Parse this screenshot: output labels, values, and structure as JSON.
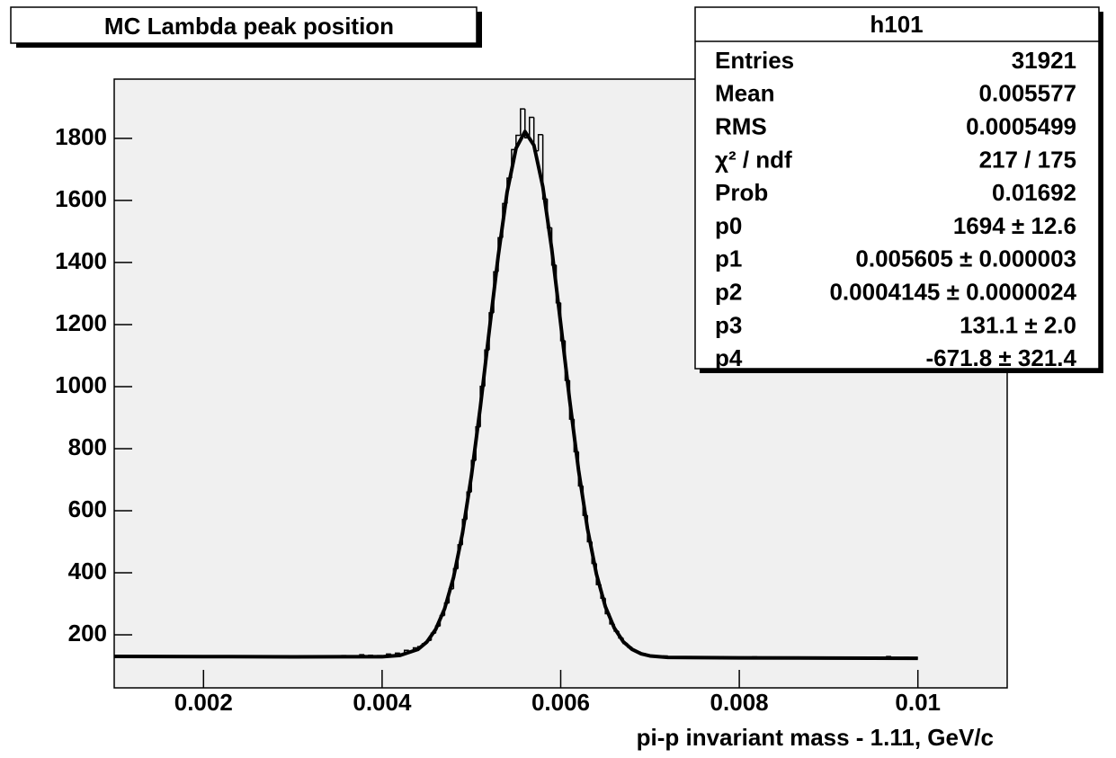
{
  "chart_data": {
    "type": "histogram",
    "title": "MC Lambda peak position",
    "x_label": "pi-p invariant mass - 1.11, GeV/c",
    "color": "#000000",
    "xlim": [
      0.001,
      0.011
    ],
    "ylim": [
      29,
      1991
    ],
    "xticks": [
      0.002,
      0.004,
      0.006,
      0.008,
      0.01
    ],
    "yticks": [
      200,
      400,
      600,
      800,
      1000,
      1200,
      1400,
      1600,
      1800
    ],
    "bins": [
      0.001,
      0.00105,
      0.0011,
      0.00115,
      0.0012,
      0.00125,
      0.0013,
      0.00135,
      0.0014,
      0.00145,
      0.0015,
      0.00155,
      0.0016,
      0.00165,
      0.0017,
      0.00175,
      0.0018,
      0.00185,
      0.0019,
      0.00195,
      0.002,
      0.00205,
      0.0021,
      0.00215,
      0.0022,
      0.00225,
      0.0023,
      0.00235,
      0.0024,
      0.00245,
      0.0025,
      0.00255,
      0.0026,
      0.00265,
      0.0027,
      0.00275,
      0.0028,
      0.00285,
      0.0029,
      0.00295,
      0.003,
      0.00305,
      0.0031,
      0.00315,
      0.0032,
      0.00325,
      0.0033,
      0.00335,
      0.0034,
      0.00345,
      0.0035,
      0.00355,
      0.0036,
      0.00365,
      0.0037,
      0.00375,
      0.0038,
      0.00385,
      0.0039,
      0.00395,
      0.004,
      0.00405,
      0.0041,
      0.00415,
      0.0042,
      0.00425,
      0.0043,
      0.00435,
      0.0044,
      0.00445,
      0.0045,
      0.00455,
      0.0046,
      0.00465,
      0.0047,
      0.00475,
      0.0048,
      0.00485,
      0.0049,
      0.00495,
      0.005,
      0.00505,
      0.0051,
      0.00515,
      0.0052,
      0.00525,
      0.0053,
      0.00535,
      0.0054,
      0.00545,
      0.0055,
      0.00555,
      0.0056,
      0.00565,
      0.0057,
      0.00575,
      0.0058,
      0.00585,
      0.0059,
      0.00595,
      0.006,
      0.00605,
      0.0061,
      0.00615,
      0.0062,
      0.00625,
      0.0063,
      0.00635,
      0.0064,
      0.00645,
      0.0065,
      0.00655,
      0.0066,
      0.00665,
      0.0067,
      0.00675,
      0.0068,
      0.00685,
      0.0069,
      0.00695,
      0.007,
      0.00705,
      0.0071,
      0.00715,
      0.0072,
      0.00725,
      0.0073,
      0.00735,
      0.0074,
      0.00745,
      0.0075,
      0.00755,
      0.0076,
      0.00765,
      0.0077,
      0.00775,
      0.0078,
      0.00785,
      0.0079,
      0.00795,
      0.008,
      0.00805,
      0.0081,
      0.00815,
      0.0082,
      0.00825,
      0.0083,
      0.00835,
      0.0084,
      0.00845,
      0.0085,
      0.00855,
      0.0086,
      0.00865,
      0.0087,
      0.00875,
      0.0088,
      0.00885,
      0.0089,
      0.00895,
      0.009,
      0.00905,
      0.0091,
      0.00915,
      0.0092,
      0.00925,
      0.0093,
      0.00935,
      0.0094,
      0.00945,
      0.0095,
      0.00955,
      0.0096,
      0.00965,
      0.0097,
      0.00975,
      0.0098,
      0.00985,
      0.0099,
      0.00995,
      0.01
    ],
    "counts": [
      131,
      129,
      132,
      130,
      131,
      128,
      130,
      132,
      129,
      131,
      130,
      131,
      129,
      130,
      132,
      130,
      128,
      131,
      130,
      129,
      131,
      130,
      129,
      132,
      130,
      129,
      131,
      130,
      128,
      130,
      131,
      129,
      130,
      130,
      128,
      131,
      129,
      130,
      132,
      129,
      130,
      128,
      131,
      129,
      130,
      131,
      129,
      130,
      128,
      131,
      130,
      133,
      129,
      131,
      130,
      136,
      131,
      134,
      132,
      133,
      130,
      138,
      134,
      141,
      137,
      150,
      146,
      158,
      162,
      171,
      182,
      205,
      228,
      262,
      302,
      348,
      413,
      490,
      572,
      660,
      762,
      870,
      1001,
      1118,
      1238,
      1370,
      1480,
      1590,
      1672,
      1764,
      1810,
      1895,
      1802,
      1868,
      1760,
      1812,
      1605,
      1512,
      1392,
      1270,
      1148,
      1020,
      895,
      790,
      680,
      585,
      500,
      430,
      362,
      318,
      268,
      235,
      212,
      190,
      172,
      160,
      150,
      144,
      140,
      134,
      133,
      131,
      130,
      132,
      129,
      128,
      127,
      129,
      126,
      128,
      127,
      126,
      128,
      127,
      129,
      126,
      128,
      127,
      125,
      128,
      127,
      126,
      128,
      129,
      126,
      127,
      125,
      128,
      126,
      127,
      128,
      126,
      125,
      127,
      126,
      128,
      126,
      125,
      127,
      126,
      128,
      125,
      126,
      127,
      125,
      126,
      128,
      125,
      126,
      127,
      125,
      126,
      128,
      130,
      125,
      126,
      125,
      127,
      126,
      125
    ],
    "fit": {
      "color": "#000000",
      "x": [
        0.001,
        0.002,
        0.003,
        0.004,
        0.0042,
        0.0044,
        0.0045,
        0.0046,
        0.0047,
        0.0048,
        0.0049,
        0.005,
        0.0051,
        0.0052,
        0.0053,
        0.0054,
        0.0055,
        0.0056,
        0.0057,
        0.0058,
        0.0059,
        0.006,
        0.0061,
        0.0062,
        0.0063,
        0.0064,
        0.0065,
        0.0066,
        0.0067,
        0.0068,
        0.0069,
        0.007,
        0.0072,
        0.008,
        0.009,
        0.01
      ],
      "values": [
        130.4,
        129.8,
        129.1,
        129.4,
        133.7,
        152.8,
        176.5,
        217.6,
        284,
        385,
        527,
        712,
        934,
        1180,
        1420,
        1627,
        1768,
        1822,
        1778,
        1644,
        1443,
        1203,
        957,
        731,
        542,
        396,
        291,
        222,
        178,
        153,
        139,
        132,
        127.3,
        125.7,
        125.1,
        124.4
      ]
    },
    "stats": {
      "title": "h101",
      "rows": [
        [
          "Entries",
          "31921"
        ],
        [
          "Mean",
          "0.005577"
        ],
        [
          "RMS",
          "0.0005499"
        ],
        [
          "χ² / ndf",
          "217 / 175"
        ],
        [
          "Prob",
          "0.01692"
        ],
        [
          "p0",
          "1694 ± 12.6"
        ],
        [
          "p1",
          "0.005605 ± 0.000003"
        ],
        [
          "p2",
          "0.0004145 ± 0.0000024"
        ],
        [
          "p3",
          "131.1 ± 2.0"
        ],
        [
          "p4",
          "-671.8 ± 321.4"
        ]
      ]
    }
  }
}
